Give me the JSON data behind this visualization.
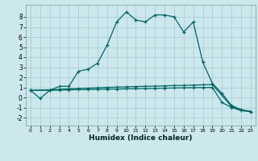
{
  "xlabel": "Humidex (Indice chaleur)",
  "bg_color": "#cce8ec",
  "grid_color": "#aacfd4",
  "line_color": "#006666",
  "xlim": [
    -0.5,
    23.5
  ],
  "ylim": [
    -2.8,
    9.2
  ],
  "yticks": [
    -2,
    -1,
    0,
    1,
    2,
    3,
    4,
    5,
    6,
    7,
    8
  ],
  "xticks": [
    0,
    1,
    2,
    3,
    4,
    5,
    6,
    7,
    8,
    9,
    10,
    11,
    12,
    13,
    14,
    15,
    16,
    17,
    18,
    19,
    20,
    21,
    22,
    23
  ],
  "curve1_x": [
    0,
    1,
    2,
    3,
    4,
    5,
    6,
    7,
    8,
    9,
    10,
    11,
    12,
    13,
    14,
    15,
    16,
    17,
    18,
    19,
    20,
    21,
    22,
    23
  ],
  "curve1_y": [
    0.7,
    -0.1,
    0.7,
    1.1,
    1.1,
    2.6,
    2.8,
    3.4,
    5.2,
    7.5,
    8.5,
    7.7,
    7.5,
    8.2,
    8.2,
    8.0,
    6.5,
    7.5,
    3.5,
    1.4,
    0.4,
    -0.8,
    -1.2,
    -1.4
  ],
  "curve2_x": [
    0,
    2,
    3,
    4,
    5,
    6,
    7,
    8,
    9,
    10,
    11,
    12,
    13,
    14,
    15,
    16,
    17,
    18,
    19,
    21,
    22,
    23
  ],
  "curve2_y": [
    0.7,
    0.75,
    0.8,
    0.85,
    0.9,
    0.92,
    0.95,
    1.0,
    1.02,
    1.05,
    1.08,
    1.1,
    1.12,
    1.15,
    1.18,
    1.2,
    1.22,
    1.25,
    1.28,
    -0.9,
    -1.3,
    -1.4
  ],
  "curve3_x": [
    0,
    2,
    3,
    4,
    5,
    6,
    7,
    8,
    9,
    10,
    11,
    12,
    13,
    14,
    15,
    16,
    17,
    18,
    19,
    20,
    21,
    22,
    23
  ],
  "curve3_y": [
    0.7,
    0.7,
    0.72,
    0.75,
    0.77,
    0.78,
    0.8,
    0.82,
    0.83,
    0.85,
    0.87,
    0.88,
    0.9,
    0.92,
    0.94,
    0.96,
    0.97,
    0.98,
    0.99,
    -0.5,
    -1.0,
    -1.3,
    -1.4
  ]
}
